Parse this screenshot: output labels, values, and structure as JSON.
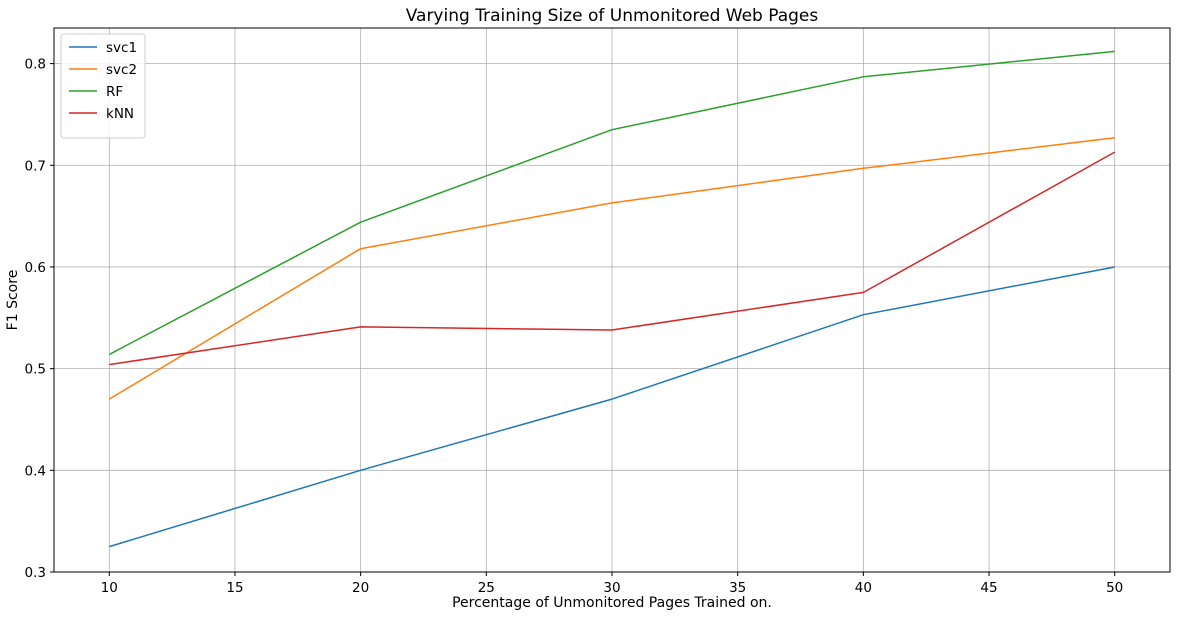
{
  "chart_data": {
    "type": "line",
    "title": "Varying Training Size of Unmonitored Web Pages",
    "xlabel": "Percentage of Unmonitored Pages Trained on.",
    "ylabel": "F1 Score",
    "x": [
      10,
      20,
      30,
      40,
      50
    ],
    "xlim": [
      7.8,
      52.2
    ],
    "ylim": [
      0.3,
      0.835
    ],
    "xticks": [
      10,
      15,
      20,
      25,
      30,
      35,
      40,
      45,
      50
    ],
    "yticks": [
      0.3,
      0.4,
      0.5,
      0.6,
      0.7,
      0.8
    ],
    "xtick_labels": [
      "10",
      "15",
      "20",
      "25",
      "30",
      "35",
      "40",
      "45",
      "50"
    ],
    "ytick_labels": [
      "0.3",
      "0.4",
      "0.5",
      "0.6",
      "0.7",
      "0.8"
    ],
    "grid": true,
    "legend_position": "top-left",
    "series": [
      {
        "name": "svc1",
        "color": "#1f77b4",
        "values": [
          0.325,
          0.4,
          0.47,
          0.553,
          0.6
        ]
      },
      {
        "name": "svc2",
        "color": "#ff7f0e",
        "values": [
          0.47,
          0.618,
          0.663,
          0.697,
          0.727
        ]
      },
      {
        "name": "RF",
        "color": "#2ca02c",
        "values": [
          0.514,
          0.644,
          0.735,
          0.787,
          0.812
        ]
      },
      {
        "name": "kNN",
        "color": "#d62728",
        "values": [
          0.504,
          0.541,
          0.538,
          0.575,
          0.713
        ]
      }
    ]
  }
}
